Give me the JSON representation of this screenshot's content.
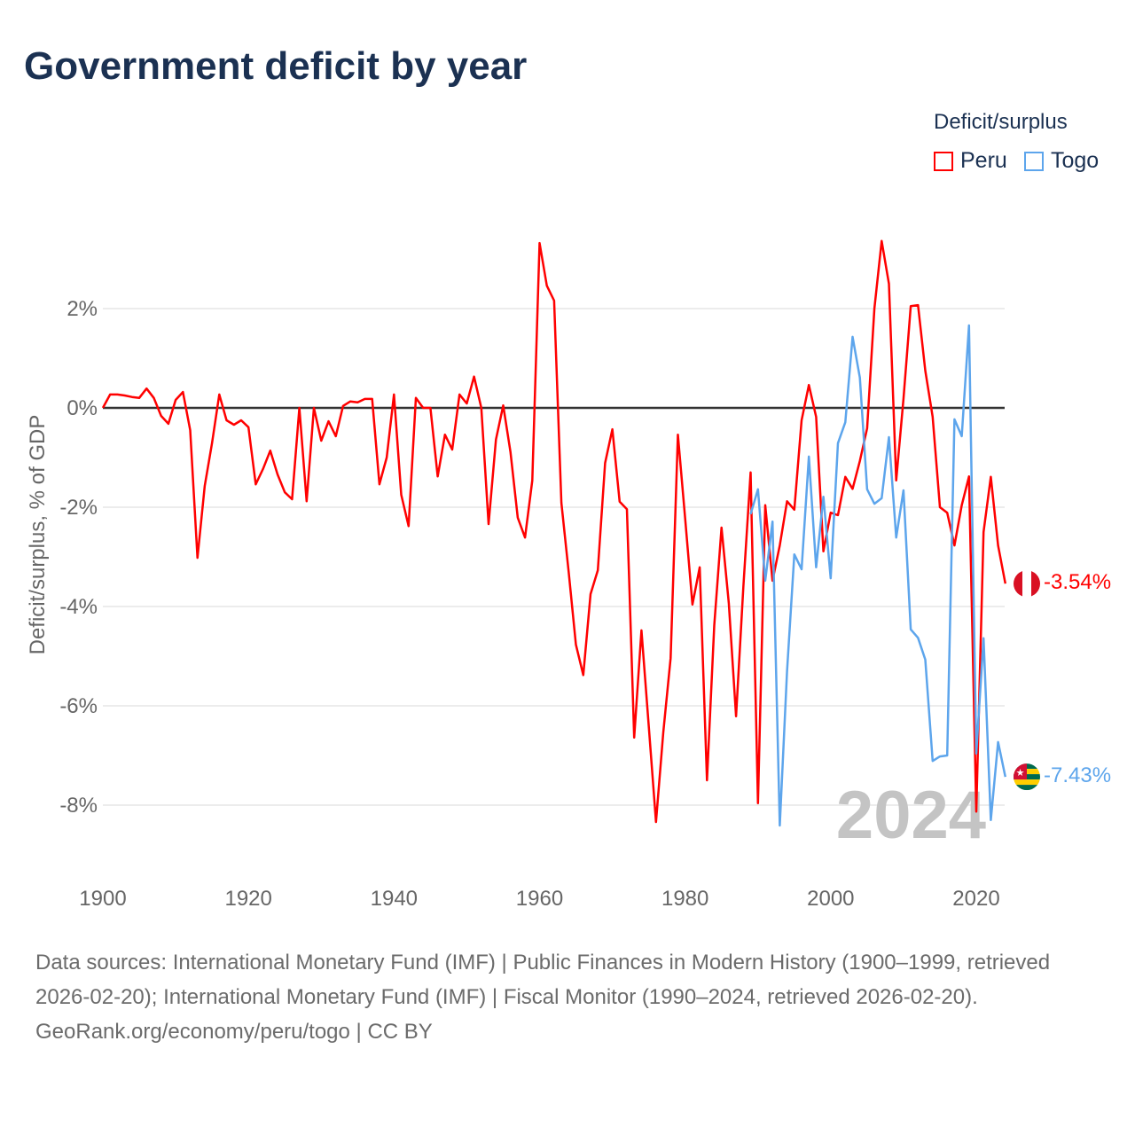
{
  "title": "Government deficit by year",
  "legend": {
    "title": "Deficit/surplus",
    "items": [
      {
        "name": "Peru",
        "color": "#ff0000"
      },
      {
        "name": "Togo",
        "color": "#5da5ec"
      }
    ]
  },
  "year_watermark": "2024",
  "end_labels": {
    "Peru": "-3.54%",
    "Togo": "-7.43%"
  },
  "footer": {
    "sources": "Data sources: International Monetary Fund (IMF) | Public Finances in Modern History (1900–1999, retrieved 2026-02-20); International Monetary Fund (IMF) | Fiscal Monitor (1990–2024, retrieved 2026-02-20).",
    "credit": "GeoRank.org/economy/peru/togo | CC BY"
  },
  "chart_data": {
    "type": "line",
    "title": "Government deficit by year",
    "xlabel": "",
    "ylabel": "Deficit/surplus, % of GDP",
    "xlim": [
      1900,
      2024
    ],
    "ylim": [
      -9.5,
      3.6
    ],
    "x_ticks": [
      1900,
      1920,
      1940,
      1960,
      1980,
      2000,
      2020
    ],
    "x_tick_labels": [
      "1900",
      "1920",
      "1940",
      "1960",
      "1980",
      "2000",
      "2020"
    ],
    "y_ticks": [
      2,
      0,
      -2,
      -4,
      -6,
      -8
    ],
    "y_tick_labels": [
      "2%",
      "0%",
      "-2%",
      "-4%",
      "-6%",
      "-8%"
    ],
    "grid": true,
    "legend_position": "top-right",
    "series": [
      {
        "name": "Peru",
        "color": "#ff0000",
        "start_year": 1900,
        "values": [
          0,
          0.27,
          0.27,
          0.25,
          0.22,
          0.2,
          0.39,
          0.2,
          -0.16,
          -0.32,
          0.16,
          0.32,
          -0.45,
          -3.02,
          -1.57,
          -0.71,
          0.27,
          -0.25,
          -0.34,
          -0.25,
          -0.39,
          -1.54,
          -1.23,
          -0.86,
          -1.34,
          -1.7,
          -1.84,
          0,
          -1.88,
          0,
          -0.66,
          -0.27,
          -0.57,
          0.04,
          0.13,
          0.11,
          0.18,
          0.18,
          -1.54,
          -1.0,
          0.27,
          -1.75,
          -2.38,
          0.2,
          0,
          0,
          -1.38,
          -0.54,
          -0.84,
          0.27,
          0.09,
          0.63,
          0,
          -2.34,
          -0.64,
          0.05,
          -0.89,
          -2.21,
          -2.61,
          -1.46,
          3.32,
          2.46,
          2.16,
          -1.91,
          -3.3,
          -4.77,
          -5.38,
          -3.75,
          -3.27,
          -1.11,
          -0.43,
          -1.89,
          -2.04,
          -6.64,
          -4.48,
          -6.4,
          -8.34,
          -6.54,
          -5.04,
          -0.54,
          -2.23,
          -3.96,
          -3.21,
          -7.5,
          -4.38,
          -2.41,
          -3.93,
          -6.21,
          -3.61,
          -1.3,
          -7.96,
          -1.96,
          -3.48,
          -2.77,
          -1.88,
          -2.05,
          -0.25,
          0.46,
          -0.18,
          -2.89,
          -2.11,
          -2.16,
          -1.39,
          -1.63,
          -1.07,
          -0.41,
          2.0,
          3.36,
          2.5,
          -1.46,
          0.18,
          2.05,
          2.07,
          0.75,
          -0.18,
          -2.0,
          -2.11,
          -2.77,
          -1.96,
          -1.38,
          -8.13,
          -2.5,
          -1.39,
          -2.77,
          -3.54
        ]
      },
      {
        "name": "Togo",
        "color": "#5da5ec",
        "start_year": 1989,
        "values": [
          -2.14,
          -1.64,
          -3.48,
          -2.29,
          -8.41,
          -5.3,
          -2.95,
          -3.25,
          -0.98,
          -3.21,
          -1.79,
          -3.43,
          -0.71,
          -0.29,
          1.43,
          0.61,
          -1.64,
          -1.93,
          -1.82,
          -0.59,
          -2.61,
          -1.66,
          -4.46,
          -4.63,
          -5.07,
          -7.11,
          -7.02,
          -7.0,
          -0.23,
          -0.57,
          1.66,
          -6.96,
          -4.64,
          -8.3,
          -6.73,
          -7.43
        ]
      }
    ]
  }
}
